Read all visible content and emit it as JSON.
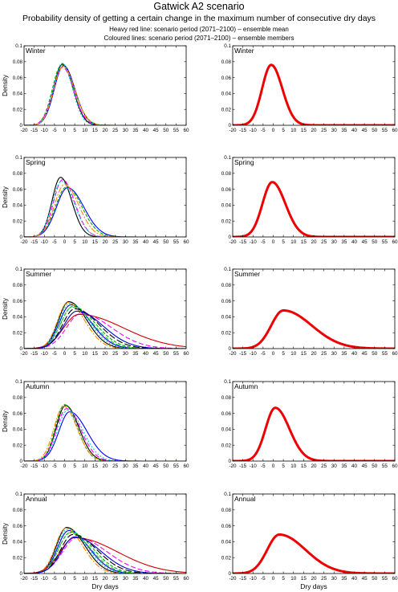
{
  "title": "Gatwick A2 scenario",
  "subtitle": "Probability density of getting a certain change in the maximum number of consecutive dry days",
  "legend_notes": [
    "Heavy red line: scenario period (2071–2100) – ensemble mean",
    "Coloured lines: scenario period (2071–2100) – ensemble members"
  ],
  "chart_data": {
    "type": "line",
    "x_label": "Dry days",
    "y_label": "Density",
    "xlim": [
      -20,
      60
    ],
    "ylim": [
      0,
      0.1
    ],
    "x_ticks": [
      -20,
      -15,
      -10,
      -5,
      0,
      5,
      10,
      15,
      20,
      25,
      30,
      35,
      40,
      45,
      50,
      55,
      60
    ],
    "y_ticks": [
      0,
      0.02,
      0.04,
      0.06,
      0.08,
      0.1
    ],
    "member_colors": [
      "#000000",
      "#0000ff",
      "#00aa00",
      "#ff00ff",
      "#00cccc",
      "#ff8800",
      "#cc0000",
      "#33cc33",
      "#000000",
      "#0000cc",
      "#888800",
      "#9900cc"
    ],
    "mean_color": "#ee0000",
    "seasons": [
      {
        "name": "Winter",
        "mean": {
          "peak_x": -1,
          "peak_y": 0.076,
          "sigma_left": 4.5,
          "sigma_right": 5.5
        },
        "members": [
          {
            "peak_x": -1,
            "peak_y": 0.077,
            "sigma_left": 4.4,
            "sigma_right": 5.2
          },
          {
            "peak_x": -0.5,
            "peak_y": 0.075,
            "sigma_left": 4.6,
            "sigma_right": 5.6
          },
          {
            "peak_x": -1.5,
            "peak_y": 0.076,
            "sigma_left": 4.5,
            "sigma_right": 6.2
          },
          {
            "peak_x": -1,
            "peak_y": 0.073,
            "sigma_left": 4.7,
            "sigma_right": 5.5
          },
          {
            "peak_x": -1.2,
            "peak_y": 0.078,
            "sigma_left": 4.3,
            "sigma_right": 5.0
          },
          {
            "peak_x": -0.8,
            "peak_y": 0.074,
            "sigma_left": 4.6,
            "sigma_right": 5.8
          }
        ]
      },
      {
        "name": "Spring",
        "mean": {
          "peak_x": -0.5,
          "peak_y": 0.069,
          "sigma_left": 4.8,
          "sigma_right": 6.5
        },
        "members": [
          {
            "peak_x": -2,
            "peak_y": 0.075,
            "sigma_left": 4.2,
            "sigma_right": 5.5
          },
          {
            "peak_x": 1.5,
            "peak_y": 0.062,
            "sigma_left": 5.5,
            "sigma_right": 8.0
          },
          {
            "peak_x": 1,
            "peak_y": 0.063,
            "sigma_left": 5.5,
            "sigma_right": 7.5
          },
          {
            "peak_x": -1,
            "peak_y": 0.072,
            "sigma_left": 4.5,
            "sigma_right": 6.0
          },
          {
            "peak_x": -1.5,
            "peak_y": 0.07,
            "sigma_left": 4.6,
            "sigma_right": 6.2
          },
          {
            "peak_x": 0,
            "peak_y": 0.066,
            "sigma_left": 5.0,
            "sigma_right": 7.0
          }
        ]
      },
      {
        "name": "Summer",
        "mean": {
          "peak_x": 5,
          "peak_y": 0.048,
          "sigma_left": 6.0,
          "sigma_right": 14.0
        },
        "members": [
          {
            "peak_x": 2,
            "peak_y": 0.059,
            "sigma_left": 5.0,
            "sigma_right": 9.0
          },
          {
            "peak_x": 3,
            "peak_y": 0.055,
            "sigma_left": 5.5,
            "sigma_right": 10.0
          },
          {
            "peak_x": 4,
            "peak_y": 0.053,
            "sigma_left": 5.8,
            "sigma_right": 11.0
          },
          {
            "peak_x": 8,
            "peak_y": 0.044,
            "sigma_left": 7.0,
            "sigma_right": 15.0
          },
          {
            "peak_x": 2.5,
            "peak_y": 0.057,
            "sigma_left": 5.2,
            "sigma_right": 9.5
          },
          {
            "peak_x": 1.5,
            "peak_y": 0.058,
            "sigma_left": 5.0,
            "sigma_right": 8.5
          },
          {
            "peak_x": 7,
            "peak_y": 0.043,
            "sigma_left": 7.5,
            "sigma_right": 22.0
          },
          {
            "peak_x": 3.5,
            "peak_y": 0.052,
            "sigma_left": 5.5,
            "sigma_right": 10.5
          },
          {
            "peak_x": 5,
            "peak_y": 0.05,
            "sigma_left": 6.0,
            "sigma_right": 12.0
          },
          {
            "peak_x": 6,
            "peak_y": 0.047,
            "sigma_left": 6.5,
            "sigma_right": 13.0
          }
        ]
      },
      {
        "name": "Autumn",
        "mean": {
          "peak_x": 1,
          "peak_y": 0.067,
          "sigma_left": 4.8,
          "sigma_right": 7.0
        },
        "members": [
          {
            "peak_x": 0.5,
            "peak_y": 0.07,
            "sigma_left": 4.6,
            "sigma_right": 6.5
          },
          {
            "peak_x": 2.5,
            "peak_y": 0.062,
            "sigma_left": 5.3,
            "sigma_right": 8.5
          },
          {
            "peak_x": 0,
            "peak_y": 0.071,
            "sigma_left": 4.5,
            "sigma_right": 6.2
          },
          {
            "peak_x": 1,
            "peak_y": 0.066,
            "sigma_left": 5.0,
            "sigma_right": 7.0
          },
          {
            "peak_x": 1.5,
            "peak_y": 0.064,
            "sigma_left": 5.0,
            "sigma_right": 7.5
          },
          {
            "peak_x": -0.5,
            "peak_y": 0.069,
            "sigma_left": 4.7,
            "sigma_right": 6.6
          }
        ]
      },
      {
        "name": "Annual",
        "mean": {
          "peak_x": 3,
          "peak_y": 0.049,
          "sigma_left": 6.0,
          "sigma_right": 13.0
        },
        "members": [
          {
            "peak_x": 1,
            "peak_y": 0.058,
            "sigma_left": 5.0,
            "sigma_right": 9.0
          },
          {
            "peak_x": 2,
            "peak_y": 0.054,
            "sigma_left": 5.4,
            "sigma_right": 10.0
          },
          {
            "peak_x": 3,
            "peak_y": 0.052,
            "sigma_left": 5.8,
            "sigma_right": 11.0
          },
          {
            "peak_x": 6,
            "peak_y": 0.045,
            "sigma_left": 7.0,
            "sigma_right": 15.0
          },
          {
            "peak_x": 1.5,
            "peak_y": 0.056,
            "sigma_left": 5.2,
            "sigma_right": 9.5
          },
          {
            "peak_x": 0.5,
            "peak_y": 0.057,
            "sigma_left": 5.0,
            "sigma_right": 8.5
          },
          {
            "peak_x": 5,
            "peak_y": 0.045,
            "sigma_left": 7.2,
            "sigma_right": 21.0
          },
          {
            "peak_x": 2.5,
            "peak_y": 0.051,
            "sigma_left": 5.5,
            "sigma_right": 10.5
          },
          {
            "peak_x": 4,
            "peak_y": 0.049,
            "sigma_left": 6.0,
            "sigma_right": 12.0
          },
          {
            "peak_x": 5,
            "peak_y": 0.046,
            "sigma_left": 6.5,
            "sigma_right": 13.0
          }
        ]
      }
    ]
  }
}
